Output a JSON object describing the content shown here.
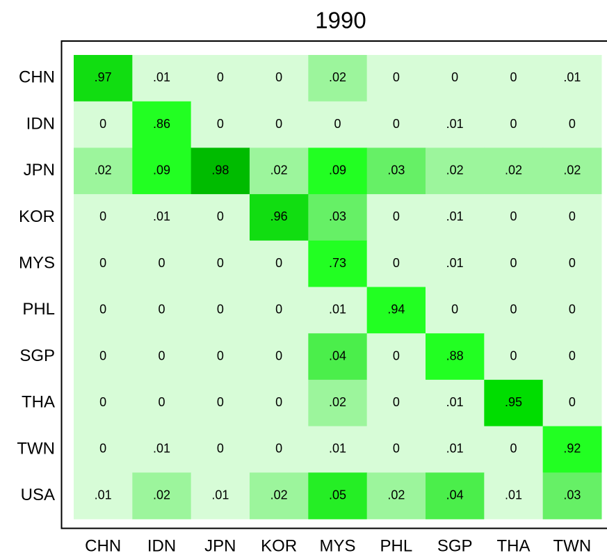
{
  "chart_data": {
    "type": "heatmap",
    "title": "1990",
    "x_categories": [
      "CHN",
      "IDN",
      "JPN",
      "KOR",
      "MYS",
      "PHL",
      "SGP",
      "THA",
      "TWN"
    ],
    "y_categories": [
      "CHN",
      "IDN",
      "JPN",
      "KOR",
      "MYS",
      "PHL",
      "SGP",
      "THA",
      "TWN",
      "USA"
    ],
    "values": [
      [
        0.97,
        0.01,
        0,
        0,
        0.02,
        0,
        0,
        0,
        0.01
      ],
      [
        0,
        0.86,
        0,
        0,
        0,
        0,
        0.01,
        0,
        0
      ],
      [
        0.02,
        0.09,
        0.98,
        0.02,
        0.09,
        0.03,
        0.02,
        0.02,
        0.02
      ],
      [
        0,
        0.01,
        0,
        0.96,
        0.03,
        0,
        0.01,
        0,
        0
      ],
      [
        0,
        0,
        0,
        0,
        0.73,
        0,
        0.01,
        0,
        0
      ],
      [
        0,
        0,
        0,
        0,
        0.01,
        0.94,
        0,
        0,
        0
      ],
      [
        0,
        0,
        0,
        0,
        0.04,
        0,
        0.88,
        0,
        0
      ],
      [
        0,
        0,
        0,
        0,
        0.02,
        0,
        0.01,
        0.95,
        0
      ],
      [
        0,
        0.01,
        0,
        0,
        0.01,
        0,
        0.01,
        0,
        0.92
      ],
      [
        0.01,
        0.02,
        0.01,
        0.02,
        0.05,
        0.02,
        0.04,
        0.01,
        0.03
      ]
    ],
    "value_labels": [
      [
        ".97",
        ".01",
        "0",
        "0",
        ".02",
        "0",
        "0",
        "0",
        ".01"
      ],
      [
        "0",
        ".86",
        "0",
        "0",
        "0",
        "0",
        ".01",
        "0",
        "0"
      ],
      [
        ".02",
        ".09",
        ".98",
        ".02",
        ".09",
        ".03",
        ".02",
        ".02",
        ".02"
      ],
      [
        "0",
        ".01",
        "0",
        ".96",
        ".03",
        "0",
        ".01",
        "0",
        "0"
      ],
      [
        "0",
        "0",
        "0",
        "0",
        ".73",
        "0",
        ".01",
        "0",
        "0"
      ],
      [
        "0",
        "0",
        "0",
        "0",
        ".01",
        ".94",
        "0",
        "0",
        "0"
      ],
      [
        "0",
        "0",
        "0",
        "0",
        ".04",
        "0",
        ".88",
        "0",
        "0"
      ],
      [
        "0",
        "0",
        "0",
        "0",
        ".02",
        "0",
        ".01",
        ".95",
        "0"
      ],
      [
        "0",
        ".01",
        "0",
        "0",
        ".01",
        "0",
        ".01",
        "0",
        ".92"
      ],
      [
        ".01",
        ".02",
        ".01",
        ".02",
        ".05",
        ".02",
        ".04",
        ".01",
        ".03"
      ]
    ],
    "colors": [
      [
        "#11dd11",
        "#d7fcd7",
        "#d7fcd7",
        "#d7fcd7",
        "#9cf59c",
        "#d7fcd7",
        "#d7fcd7",
        "#d7fcd7",
        "#d7fcd7"
      ],
      [
        "#d7fcd7",
        "#22ff22",
        "#d7fcd7",
        "#d7fcd7",
        "#d7fcd7",
        "#d7fcd7",
        "#d7fcd7",
        "#d7fcd7",
        "#d7fcd7"
      ],
      [
        "#9cf59c",
        "#22ff22",
        "#00bb00",
        "#9cf59c",
        "#22ff22",
        "#66f066",
        "#9cf59c",
        "#9cf59c",
        "#9cf59c"
      ],
      [
        "#d7fcd7",
        "#d7fcd7",
        "#d7fcd7",
        "#11dd11",
        "#66f066",
        "#d7fcd7",
        "#d7fcd7",
        "#d7fcd7",
        "#d7fcd7"
      ],
      [
        "#d7fcd7",
        "#d7fcd7",
        "#d7fcd7",
        "#d7fcd7",
        "#22ff22",
        "#d7fcd7",
        "#d7fcd7",
        "#d7fcd7",
        "#d7fcd7"
      ],
      [
        "#d7fcd7",
        "#d7fcd7",
        "#d7fcd7",
        "#d7fcd7",
        "#d7fcd7",
        "#22ff22",
        "#d7fcd7",
        "#d7fcd7",
        "#d7fcd7"
      ],
      [
        "#d7fcd7",
        "#d7fcd7",
        "#d7fcd7",
        "#d7fcd7",
        "#4bee4b",
        "#d7fcd7",
        "#22ff22",
        "#d7fcd7",
        "#d7fcd7"
      ],
      [
        "#d7fcd7",
        "#d7fcd7",
        "#d7fcd7",
        "#d7fcd7",
        "#9cf59c",
        "#d7fcd7",
        "#d7fcd7",
        "#00dd00",
        "#d7fcd7"
      ],
      [
        "#d7fcd7",
        "#d7fcd7",
        "#d7fcd7",
        "#d7fcd7",
        "#d7fcd7",
        "#d7fcd7",
        "#d7fcd7",
        "#d7fcd7",
        "#22ff22"
      ],
      [
        "#d7fcd7",
        "#9cf59c",
        "#d7fcd7",
        "#9cf59c",
        "#25ee25",
        "#9cf59c",
        "#4bee4b",
        "#d7fcd7",
        "#66f066"
      ]
    ]
  }
}
